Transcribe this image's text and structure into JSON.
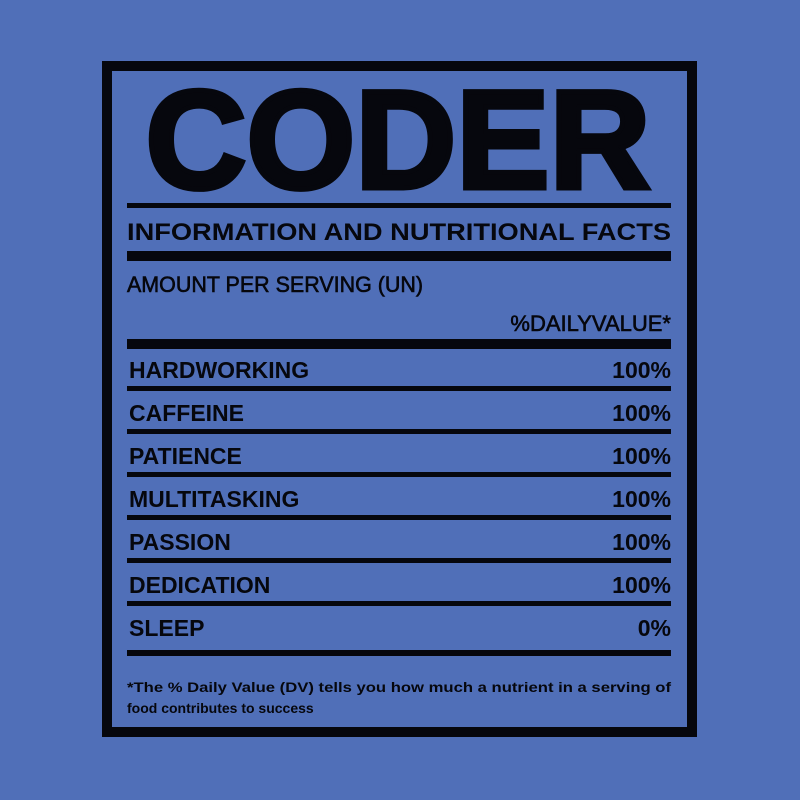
{
  "colors": {
    "background": "#506fb8",
    "ink": "#06070d"
  },
  "label": {
    "title": "CODER",
    "subtitle": "INFORMATION AND NUTRITIONAL FACTS",
    "serving": "AMOUNT PER SERVING (UN)",
    "daily_value_header": "%DAILYVALUE*",
    "rows": [
      {
        "name": "HARDWORKING",
        "value": "100%"
      },
      {
        "name": "CAFFEINE",
        "value": "100%"
      },
      {
        "name": "PATIENCE",
        "value": "100%"
      },
      {
        "name": "MULTITASKING",
        "value": "100%"
      },
      {
        "name": "PASSION",
        "value": "100%"
      },
      {
        "name": "DEDICATION",
        "value": "100%"
      },
      {
        "name": "SLEEP",
        "value": "0%"
      }
    ],
    "footnote_line1": "*The % Daily Value (DV) tells you how much a nutrient in a serving of",
    "footnote_line2": "food contributes to success"
  }
}
